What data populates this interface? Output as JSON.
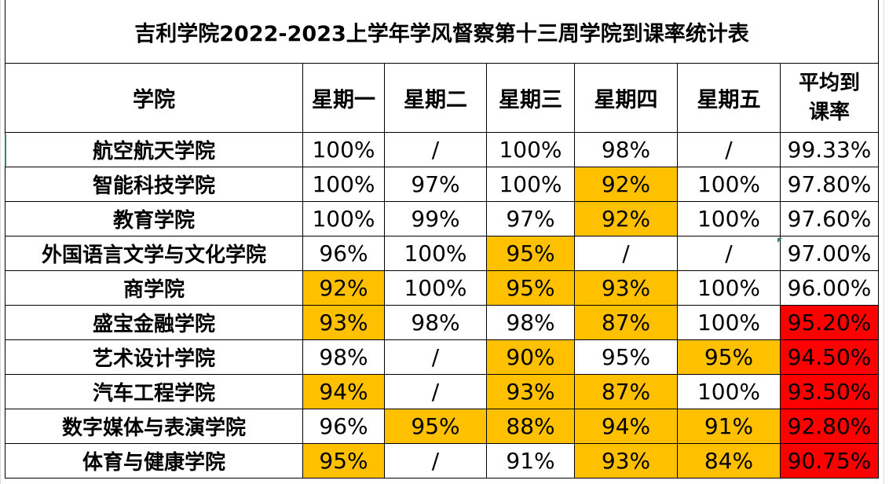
{
  "title": "吉利学院2022-2023上学年学风督察第十三周学院到课率统计表",
  "headers": {
    "college": "学院",
    "days": [
      "星期一",
      "星期二",
      "星期三",
      "星期四",
      "星期五"
    ],
    "average_line1": "平均到",
    "average_line2": "课率"
  },
  "highlight_colors": {
    "orange": "#ffc000",
    "red": "#ff0000"
  },
  "rows": [
    {
      "name": "航空航天学院",
      "days": [
        "100%",
        "/",
        "100%",
        "98%",
        "/"
      ],
      "avg": "99.33%"
    },
    {
      "name": "智能科技学院",
      "days": [
        "100%",
        "97%",
        "100%",
        "92%",
        "100%"
      ],
      "avg": "97.80%"
    },
    {
      "name": "教育学院",
      "days": [
        "100%",
        "99%",
        "97%",
        "92%",
        "100%"
      ],
      "avg": "97.60%"
    },
    {
      "name": "外国语言文学与文化学院",
      "days": [
        "96%",
        "100%",
        "95%",
        "/",
        "/"
      ],
      "avg": "97.00%"
    },
    {
      "name": "商学院",
      "days": [
        "92%",
        "100%",
        "95%",
        "93%",
        "100%"
      ],
      "avg": "96.00%"
    },
    {
      "name": "盛宝金融学院",
      "days": [
        "93%",
        "98%",
        "98%",
        "87%",
        "100%"
      ],
      "avg": "95.20%"
    },
    {
      "name": "艺术设计学院",
      "days": [
        "98%",
        "/",
        "90%",
        "95%",
        "95%"
      ],
      "avg": "94.50%"
    },
    {
      "name": "汽车工程学院",
      "days": [
        "94%",
        "/",
        "93%",
        "87%",
        "100%"
      ],
      "avg": "93.50%"
    },
    {
      "name": "数字媒体与表演学院",
      "days": [
        "96%",
        "95%",
        "88%",
        "94%",
        "91%"
      ],
      "avg": "92.80%"
    },
    {
      "name": "体育与健康学院",
      "days": [
        "95%",
        "/",
        "91%",
        "93%",
        "84%"
      ],
      "avg": "90.75%"
    }
  ]
}
